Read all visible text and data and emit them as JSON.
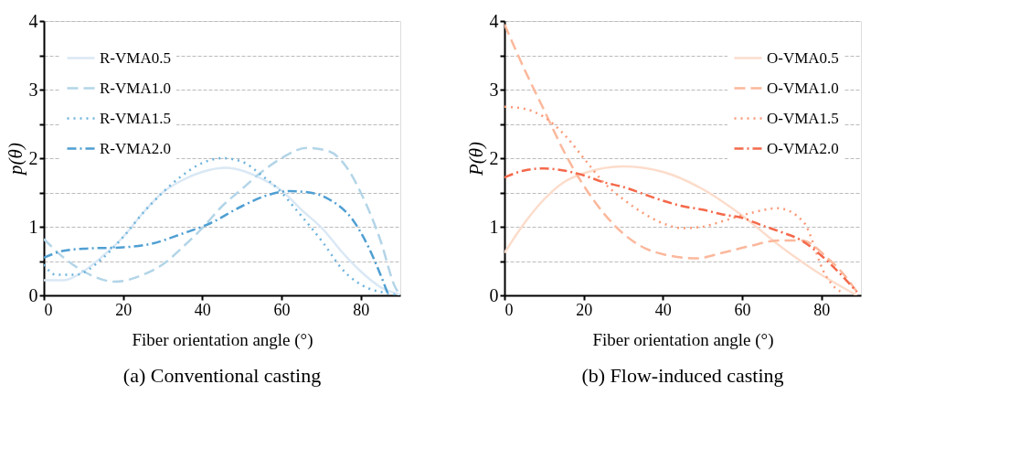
{
  "chart_data": [
    {
      "type": "line",
      "title": "(a) Conventional casting",
      "xlabel": "Fiber orientation angle (°)",
      "ylabel": "p(θ)",
      "xlim": [
        0,
        90
      ],
      "xticks": [
        0,
        20,
        40,
        60,
        80
      ],
      "ylim": [
        0,
        4
      ],
      "yticks": [
        0,
        {
          "value": 0.5,
          "label": null
        },
        1,
        {
          "value": 1.5,
          "label": null
        },
        2,
        {
          "value": 2.5,
          "label": null
        },
        3,
        {
          "value": 3.5,
          "label": null
        },
        4
      ],
      "grid": "y",
      "legend": "top left",
      "series": [
        {
          "name": "R-VMA0.5",
          "color": "#dae8f5",
          "line_style": "solid",
          "x": [
            0,
            5,
            10,
            15,
            20,
            25,
            30,
            35,
            40,
            46,
            50,
            55,
            60,
            65,
            70.7,
            75,
            80,
            85,
            90
          ],
          "values": [
            0.22,
            0.22,
            0.35,
            0.58,
            0.85,
            1.2,
            1.5,
            1.68,
            1.8,
            1.86,
            1.82,
            1.7,
            1.53,
            1.25,
            0.95,
            0.65,
            0.35,
            0.12,
            0.01
          ]
        },
        {
          "name": "R-VMA1.0",
          "color": "#b3d5e8",
          "line_style": "dashed",
          "x": [
            0,
            5,
            10,
            18,
            25,
            30,
            35,
            40,
            45,
            50,
            55,
            60,
            66.4,
            72,
            77,
            80,
            85,
            88.7,
            90
          ],
          "values": [
            0.82,
            0.55,
            0.35,
            0.2,
            0.3,
            0.45,
            0.7,
            0.98,
            1.3,
            1.55,
            1.8,
            2.0,
            2.15,
            2.1,
            1.82,
            1.5,
            0.8,
            0.12,
            0.0
          ]
        },
        {
          "name": "R-VMA1.5",
          "color": "#6fb4dc",
          "line_style": "dotted",
          "x": [
            0,
            3,
            8,
            15,
            20,
            25,
            30,
            35,
            40,
            45,
            50,
            55,
            60,
            63.4,
            70.6,
            75.2,
            82,
            85,
            90
          ],
          "values": [
            0.45,
            0.3,
            0.3,
            0.55,
            0.85,
            1.2,
            1.5,
            1.75,
            1.93,
            2.0,
            1.95,
            1.75,
            1.5,
            1.27,
            0.76,
            0.39,
            0.1,
            0.05,
            0.0
          ]
        },
        {
          "name": "R-VMA2.0",
          "color": "#4f9fd2",
          "line_style": "dashdot",
          "x": [
            0,
            5,
            10,
            20,
            27,
            35,
            42,
            50,
            57,
            62,
            67,
            72,
            78,
            82,
            85,
            87
          ],
          "values": [
            0.55,
            0.65,
            0.68,
            0.7,
            0.75,
            0.9,
            1.05,
            1.3,
            1.47,
            1.52,
            1.5,
            1.4,
            1.1,
            0.7,
            0.3,
            0.0
          ]
        }
      ]
    },
    {
      "type": "line",
      "title": "(b) Flow-induced casting",
      "xlabel": "Fiber orientation angle (°)",
      "ylabel": "P(θ)",
      "xlim": [
        0,
        90
      ],
      "xticks": [
        0,
        20,
        40,
        60,
        80
      ],
      "ylim": [
        0,
        4
      ],
      "yticks": [
        0,
        {
          "value": 0.5,
          "label": null
        },
        1,
        {
          "value": 1.5,
          "label": null
        },
        2,
        {
          "value": 2.5,
          "label": null
        },
        3,
        {
          "value": 3.5,
          "label": null
        },
        4
      ],
      "grid": "y",
      "legend": "top right",
      "series": [
        {
          "name": "O-VMA0.5",
          "color": "#fcdccb",
          "line_style": "solid",
          "x": [
            0,
            5,
            10,
            15,
            20,
            30,
            40,
            50,
            59.4,
            70,
            80,
            89
          ],
          "values": [
            0.62,
            1.05,
            1.4,
            1.65,
            1.78,
            1.88,
            1.8,
            1.55,
            1.19,
            0.7,
            0.3,
            0.0
          ]
        },
        {
          "name": "O-VMA1.0",
          "color": "#fbb89c",
          "line_style": "dashed",
          "x": [
            0,
            5,
            10,
            15,
            20,
            25,
            30,
            35,
            40,
            48.6,
            55,
            62,
            69.4,
            75,
            82,
            85,
            89
          ],
          "values": [
            3.95,
            3.3,
            2.7,
            2.1,
            1.6,
            1.2,
            0.9,
            0.7,
            0.6,
            0.54,
            0.62,
            0.72,
            0.8,
            0.8,
            0.52,
            0.35,
            0.05
          ]
        },
        {
          "name": "O-VMA1.5",
          "color": "#fa9a78",
          "line_style": "dotted",
          "x": [
            0,
            5,
            10,
            15,
            20,
            25,
            30,
            35,
            40,
            45,
            50,
            55,
            61.5,
            69,
            75.5,
            81,
            83.7,
            85
          ],
          "values": [
            2.75,
            2.72,
            2.6,
            2.35,
            2.0,
            1.65,
            1.4,
            1.2,
            1.05,
            0.98,
            1.0,
            1.08,
            1.19,
            1.27,
            1.07,
            0.3,
            0.1,
            0.05
          ]
        },
        {
          "name": "O-VMA2.0",
          "color": "#f4694b",
          "line_style": "dashdot",
          "x": [
            0,
            5,
            10,
            15,
            20,
            25,
            30,
            35,
            40,
            45,
            50,
            55,
            60,
            65,
            70,
            75,
            80,
            85,
            89
          ],
          "values": [
            1.72,
            1.82,
            1.85,
            1.82,
            1.75,
            1.65,
            1.58,
            1.48,
            1.38,
            1.3,
            1.25,
            1.18,
            1.13,
            1.02,
            0.92,
            0.8,
            0.58,
            0.3,
            0.05
          ]
        }
      ]
    }
  ]
}
